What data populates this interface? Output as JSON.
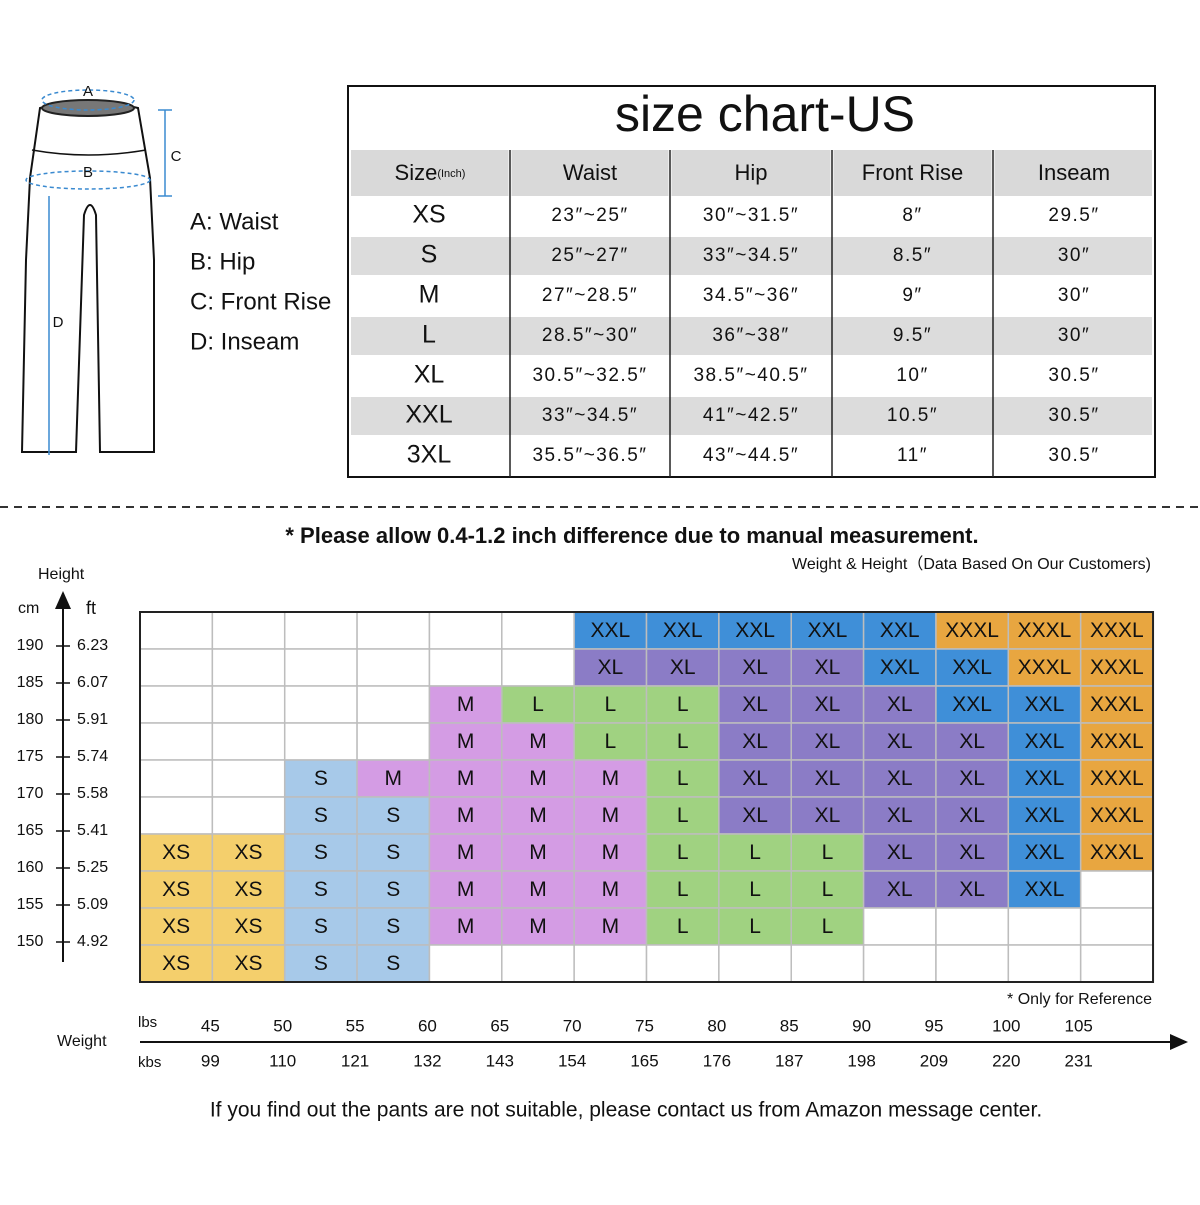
{
  "diagram": {
    "labels": [
      "A",
      "B",
      "C",
      "D"
    ]
  },
  "legend": [
    "A: Waist",
    "B: Hip",
    "C: Front Rise",
    "D: Inseam"
  ],
  "size_table": {
    "title": "size chart-US",
    "header": {
      "size": "Size",
      "unit": "(Inch)",
      "columns": [
        "Waist",
        "Hip",
        "Front Rise",
        "Inseam"
      ]
    },
    "rows": [
      [
        "XS",
        "23″~25″",
        "30″~31.5″",
        "8″",
        "29.5″"
      ],
      [
        "S",
        "25″~27″",
        "33″~34.5″",
        "8.5″",
        "30″"
      ],
      [
        "M",
        "27″~28.5″",
        "34.5″~36″",
        "9″",
        "30″"
      ],
      [
        "L",
        "28.5″~30″",
        "36″~38″",
        "9.5″",
        "30″"
      ],
      [
        "XL",
        "30.5″~32.5″",
        "38.5″~40.5″",
        "10″",
        "30.5″"
      ],
      [
        "XXL",
        "33″~34.5″",
        "41″~42.5″",
        "10.5″",
        "30.5″"
      ],
      [
        "3XL",
        "35.5″~36.5″",
        "43″~44.5″",
        "11″",
        "30.5″"
      ]
    ]
  },
  "note": "* Please allow 0.4-1.2 inch difference due to manual measurement.",
  "weight_height": {
    "subtitle": "Weight & Height（Data Based On Our Customers)",
    "y_title": "Height",
    "cm_label": "cm",
    "ft_label": "ft",
    "heights_cm": [
      190,
      185,
      180,
      175,
      170,
      165,
      160,
      155,
      150
    ],
    "heights_ft": [
      6.23,
      6.07,
      5.91,
      5.74,
      5.58,
      5.41,
      5.25,
      5.09,
      4.92
    ],
    "x_title": "Weight",
    "lbs_label": "lbs",
    "kbs_label": "kbs",
    "lbs": [
      45,
      50,
      55,
      60,
      65,
      70,
      75,
      80,
      85,
      90,
      95,
      100,
      105
    ],
    "kbs": [
      99,
      110,
      121,
      132,
      143,
      154,
      165,
      176,
      187,
      198,
      209,
      220,
      231
    ],
    "size_colors": {
      "XS": "#f4cf6c",
      "S": "#a7c9e9",
      "M": "#d49ce4",
      "L": "#a0d281",
      "XL": "#8b7cc6",
      "XXL": "#3f8fd8",
      "XXXL": "#e8a640"
    },
    "grid": [
      [
        null,
        null,
        null,
        null,
        null,
        null,
        "XXL",
        "XXL",
        "XXL",
        "XXL",
        "XXL",
        "XXXL",
        "XXXL",
        "XXXL"
      ],
      [
        null,
        null,
        null,
        null,
        null,
        null,
        "XL",
        "XL",
        "XL",
        "XL",
        "XXL",
        "XXL",
        "XXXL",
        "XXXL"
      ],
      [
        null,
        null,
        null,
        null,
        "M",
        "L",
        "L",
        "L",
        "XL",
        "XL",
        "XL",
        "XXL",
        "XXL",
        "XXXL"
      ],
      [
        null,
        null,
        null,
        null,
        "M",
        "M",
        "L",
        "L",
        "XL",
        "XL",
        "XL",
        "XL",
        "XXL",
        "XXXL"
      ],
      [
        null,
        null,
        "S",
        "M",
        "M",
        "M",
        "M",
        "L",
        "XL",
        "XL",
        "XL",
        "XL",
        "XXL",
        "XXXL"
      ],
      [
        null,
        null,
        "S",
        "S",
        "M",
        "M",
        "M",
        "L",
        "XL",
        "XL",
        "XL",
        "XL",
        "XXL",
        "XXXL"
      ],
      [
        "XS",
        "XS",
        "S",
        "S",
        "M",
        "M",
        "M",
        "L",
        "L",
        "L",
        "XL",
        "XL",
        "XXL",
        "XXXL"
      ],
      [
        "XS",
        "XS",
        "S",
        "S",
        "M",
        "M",
        "M",
        "L",
        "L",
        "L",
        "XL",
        "XL",
        "XXL",
        null
      ],
      [
        "XS",
        "XS",
        "S",
        "S",
        "M",
        "M",
        "M",
        "L",
        "L",
        "L",
        null,
        null,
        null,
        null
      ],
      [
        "XS",
        "XS",
        "S",
        "S",
        null,
        null,
        null,
        null,
        null,
        null,
        null,
        null,
        null,
        null
      ]
    ],
    "reference_note": "* Only for Reference"
  },
  "footer": "If you find out the pants are not suitable, please contact us from Amazon message center."
}
